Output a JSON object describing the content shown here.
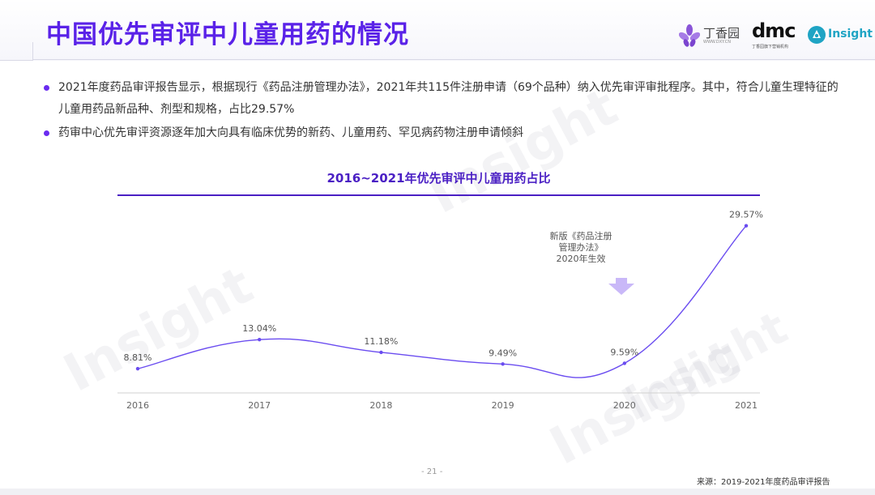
{
  "title": "中国优先审评中儿童用药的情况",
  "logos": {
    "dxy_name": "丁香园",
    "dxy_sub": "WWW.DXY.CN",
    "dmc_name": "dmc",
    "dmc_sub": "丁香园旗下营销机构",
    "insight_name": "Insight"
  },
  "bullets": [
    "2021年度药品审评报告显示，根据现行《药品注册管理办法》，2021年共115件注册申请（69个品种）纳入优先审评审批程序。其中，符合儿童生理特征的儿童用药品新品种、剂型和规格，占比29.57%",
    "药审中心优先审评资源逐年加大向具有临床优势的新药、儿童用药、罕见病药物注册申请倾斜"
  ],
  "chart_data": {
    "type": "line",
    "title": "2016~2021年优先审评中儿童用药占比",
    "x": [
      "2016",
      "2017",
      "2018",
      "2019",
      "2020",
      "2021"
    ],
    "values": [
      8.81,
      13.04,
      11.18,
      9.49,
      9.59,
      29.57
    ],
    "labels": [
      "8.81%",
      "13.04%",
      "11.18%",
      "9.49%",
      "9.59%",
      "29.57%"
    ],
    "ylim": [
      0,
      32
    ],
    "annotation": [
      "新版《药品注册",
      "管理办法》",
      "2020年生效"
    ],
    "line_color": "#6a4cf0",
    "grid": false
  },
  "watermarks": [
    "Insight",
    "Insight",
    "Insight",
    "Insight"
  ],
  "footer": {
    "page": "- 21 -",
    "source": "来源：2019-2021年度药品审评报告"
  },
  "colors": {
    "accent": "#5a22e8",
    "chart_title": "#4a1fc4",
    "arrow": "#c9b8f8"
  }
}
